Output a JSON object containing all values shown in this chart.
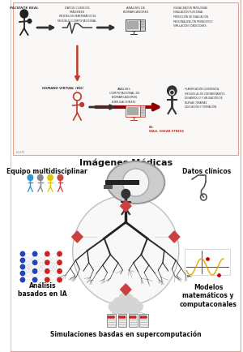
{
  "bg_color": "#ffffff",
  "border_color": "#e8a090",
  "red_color": "#c0392b",
  "dark_red": "#8b0000",
  "arrow_color": "#222222",
  "title_bottom": "Imágenes Médicas",
  "label_equipo": "Equipo multidisciplinar",
  "label_datos": "Datos clínicos",
  "label_analisis": "Análisis\nbasados en IA",
  "label_modelos": "Modelos\nmatemáticos y\ncomputaconales",
  "label_simulaciones": "Simulaciones basdas en supercomputación",
  "top_label1": "PACIENTE REAL",
  "top_label2": "DATOS CLÍNICOS\nIMÁGENES\nMODELOS MATEMÁTICOS\nMODELO COMPUTACIONAL",
  "top_label3": "ANÁLISIS DE\nBIOMARCADORES",
  "top_label4": "VISUALIZACIÓN PATOLOGÍAS\nEVALUACIÓN FUNCIONAL\nPREDICCIÓN DE EVALUACIÓN\nPERSONALIZACIÓN PRONÓSTICO\nSIMULACIÓN CONDICIONES.",
  "top_label5": "HUMANO VIRTUAL (DG)",
  "top_label6": "ANÁLISIS\nCOMPUTACIONAL DE\nBIOMARCADORES\n(SIMULACIONES)",
  "top_label7": "PLANIFICACIÓN QUIRÚRGICA\nRIESGOS A LOS CONTAMINANTES\nDESARROLLO Y VALIDACIÓN DE\nNUEVAS TERAPIAS.\nEDUCACIÓN Y FORMACIÓN",
  "top_label8": "EG.\nWALL SHEAR STRESS",
  "elem_label": "ELEM"
}
